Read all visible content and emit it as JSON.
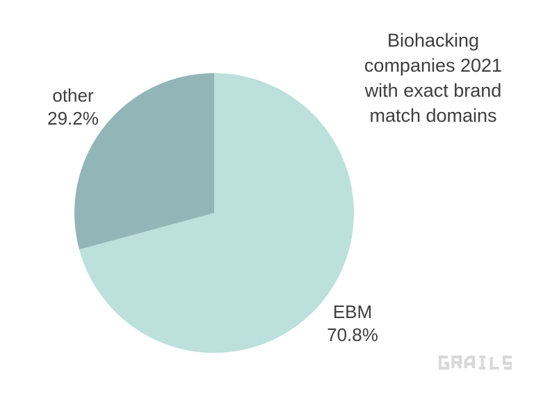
{
  "page": {
    "background": "#ffffff",
    "text_color": "#3e3e3e"
  },
  "title": {
    "lines": [
      "Biohacking",
      "companies 2021",
      "with exact brand",
      "match domains"
    ]
  },
  "chart_data": {
    "type": "pie",
    "title": "Biohacking companies 2021 with exact brand match domains",
    "labels": [
      "EBM",
      "other"
    ],
    "values": [
      70.8,
      29.2
    ],
    "value_unit": "%",
    "colors": [
      "#bce0db",
      "#92b5b8"
    ],
    "start_angle_deg": 0,
    "direction": "clockwise",
    "legend_position": "none",
    "data_labels": [
      {
        "label": "EBM",
        "text": "70.8%",
        "placement": "outside-bottom-right"
      },
      {
        "label": "other",
        "text": "29.2%",
        "placement": "outside-top-left"
      }
    ]
  },
  "slice_labels": {
    "other": {
      "name": "other",
      "pct": "29.2%"
    },
    "ebm": {
      "name": "EBM",
      "pct": "70.8%"
    }
  },
  "logo": {
    "text": "GRAILS",
    "color": "#d9d9d9"
  }
}
